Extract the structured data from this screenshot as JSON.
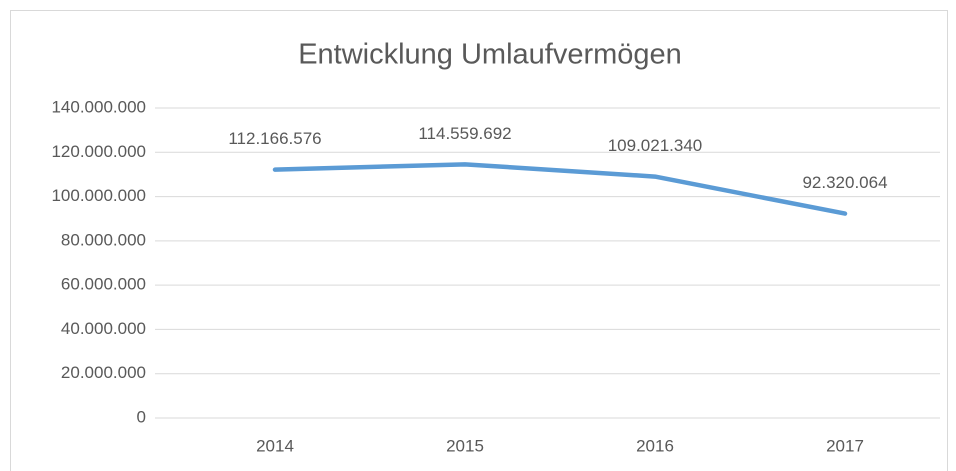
{
  "chart_data": {
    "type": "line",
    "title": "Entwicklung Umlaufvermögen",
    "categories": [
      "2014",
      "2015",
      "2016",
      "2017"
    ],
    "series": [
      {
        "name": "Umlaufvermögen",
        "color": "#5b9bd5",
        "values": [
          112166576,
          114559692,
          109021340,
          92320064
        ],
        "value_labels": [
          "112.166.576",
          "114.559.692",
          "109.021.340",
          "92.320.064"
        ]
      }
    ],
    "ylim": [
      0,
      140000000
    ],
    "yticks": [
      0,
      {
        "value": 20000000,
        "label": "20.000.000"
      },
      {
        "value": 40000000,
        "label": "40.000.000"
      },
      {
        "value": 60000000,
        "label": "60.000.000"
      },
      {
        "value": 80000000,
        "label": "80.000.000"
      },
      {
        "value": 100000000,
        "label": "100.000.000"
      },
      {
        "value": 120000000,
        "label": "120.000.000"
      },
      {
        "value": 140000000,
        "label": "140.000.000"
      }
    ],
    "grid": true
  }
}
